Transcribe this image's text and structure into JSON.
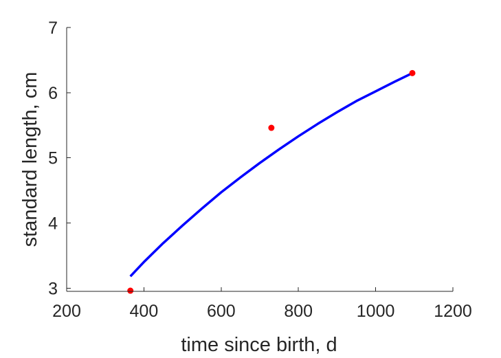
{
  "chart_data": {
    "type": "scatter",
    "title": "",
    "xlabel": "time since birth, d",
    "ylabel": "standard length, cm",
    "xlim": [
      200,
      1200
    ],
    "ylim": [
      2.95,
      7
    ],
    "xticks": [
      200,
      400,
      600,
      800,
      1000,
      1200
    ],
    "yticks": [
      3,
      4,
      5,
      6,
      7
    ],
    "grid": false,
    "box": "left-bottom",
    "series": [
      {
        "kind": "line",
        "color": "#0000ff",
        "x": [
          365,
          400,
          450,
          500,
          550,
          600,
          650,
          700,
          750,
          800,
          850,
          900,
          950,
          1000,
          1050,
          1095
        ],
        "y": [
          3.18,
          3.4,
          3.69,
          3.96,
          4.22,
          4.47,
          4.7,
          4.92,
          5.13,
          5.33,
          5.52,
          5.7,
          5.87,
          6.02,
          6.17,
          6.3
        ]
      },
      {
        "kind": "scatter",
        "color": "#ff0000",
        "x": [
          365,
          730,
          1095
        ],
        "y": [
          2.96,
          5.46,
          6.3
        ]
      }
    ]
  }
}
